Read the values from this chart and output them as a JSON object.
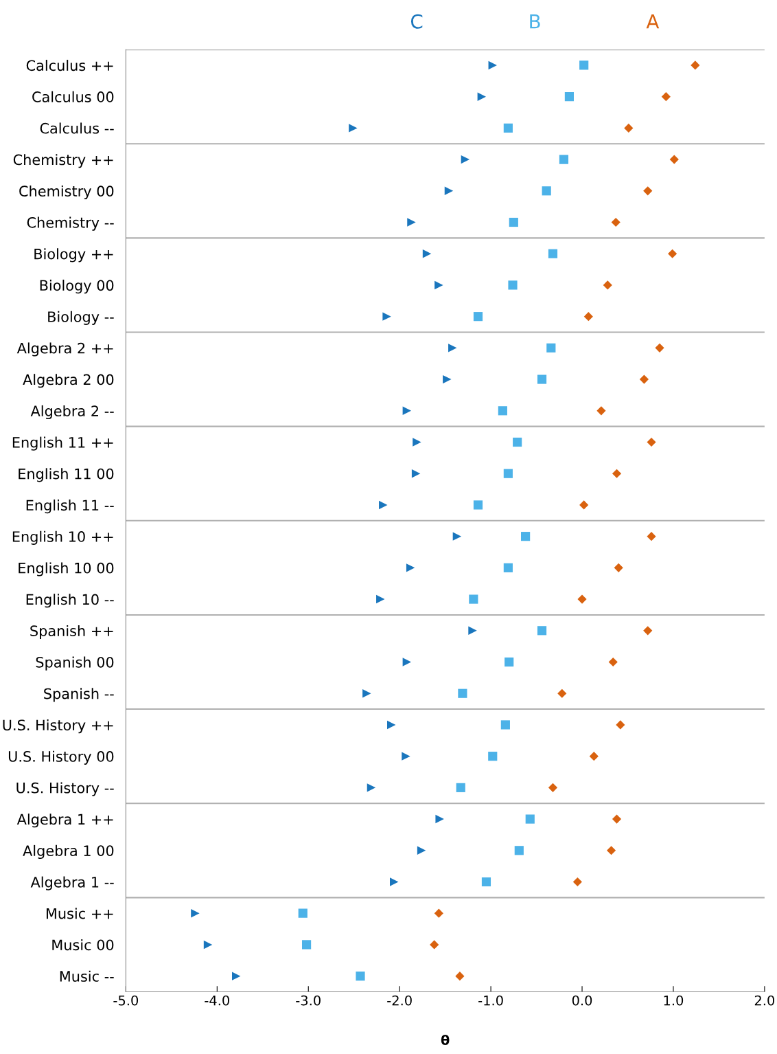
{
  "chart_data": {
    "type": "scatter",
    "orientation": "horizontal",
    "xlabel": "θ",
    "categories": [
      "Calculus ++",
      "Calculus 00",
      "Calculus --",
      "Chemistry ++",
      "Chemistry 00",
      "Chemistry --",
      "Biology ++",
      "Biology 00",
      "Biology --",
      "Algebra 2 ++",
      "Algebra 2 00",
      "Algebra 2 --",
      "English 11 ++",
      "English 11 00",
      "English 11 --",
      "English 10 ++",
      "English 10 00",
      "English 10 --",
      "Spanish ++",
      "Spanish 00",
      "Spanish --",
      "U.S. History ++",
      "U.S. History 00",
      "U.S. History --",
      "Algebra 1 ++",
      "Algebra 1 00",
      "Algebra 1 --",
      "Music ++",
      "Music 00",
      "Music --"
    ],
    "series": [
      {
        "name": "C",
        "color": "#1a76bd",
        "marker": "triangle",
        "values": [
          -0.98,
          -1.1,
          -2.51,
          -1.28,
          -1.46,
          -1.87,
          -1.7,
          -1.57,
          -2.14,
          -1.42,
          -1.48,
          -1.92,
          -1.81,
          -1.82,
          -2.18,
          -1.37,
          -1.88,
          -2.21,
          -1.2,
          -1.92,
          -2.36,
          -2.09,
          -1.93,
          -2.31,
          -1.56,
          -1.76,
          -2.06,
          -4.24,
          -4.1,
          -3.79
        ]
      },
      {
        "name": "B",
        "color": "#4cb2e8",
        "marker": "square",
        "values": [
          0.02,
          -0.14,
          -0.81,
          -0.2,
          -0.39,
          -0.75,
          -0.32,
          -0.76,
          -1.14,
          -0.34,
          -0.44,
          -0.87,
          -0.71,
          -0.81,
          -1.14,
          -0.62,
          -0.81,
          -1.19,
          -0.44,
          -0.8,
          -1.31,
          -0.84,
          -0.98,
          -1.33,
          -0.57,
          -0.69,
          -1.05,
          -3.06,
          -3.02,
          -2.43
        ]
      },
      {
        "name": "A",
        "color": "#d9620f",
        "marker": "diamond",
        "values": [
          1.24,
          0.92,
          0.51,
          1.01,
          0.72,
          0.37,
          0.99,
          0.28,
          0.07,
          0.85,
          0.68,
          0.21,
          0.76,
          0.38,
          0.02,
          0.76,
          0.4,
          0.0,
          0.72,
          0.34,
          -0.22,
          0.42,
          0.13,
          -0.32,
          0.38,
          0.32,
          -0.05,
          -1.57,
          -1.62,
          -1.34
        ]
      }
    ],
    "xlim": [
      -5,
      2
    ],
    "xticks": [
      {
        "value": -5,
        "label": "-5.0"
      },
      {
        "value": -4,
        "label": "-4.0"
      },
      {
        "value": -3,
        "label": "-3.0"
      },
      {
        "value": -2,
        "label": "-2.0"
      },
      {
        "value": -1,
        "label": "-1.0"
      },
      {
        "value": 0,
        "label": "0.0"
      },
      {
        "value": 1,
        "label": "1.0"
      },
      {
        "value": 2,
        "label": "2.0"
      }
    ],
    "grid": "y",
    "legend": "top"
  }
}
